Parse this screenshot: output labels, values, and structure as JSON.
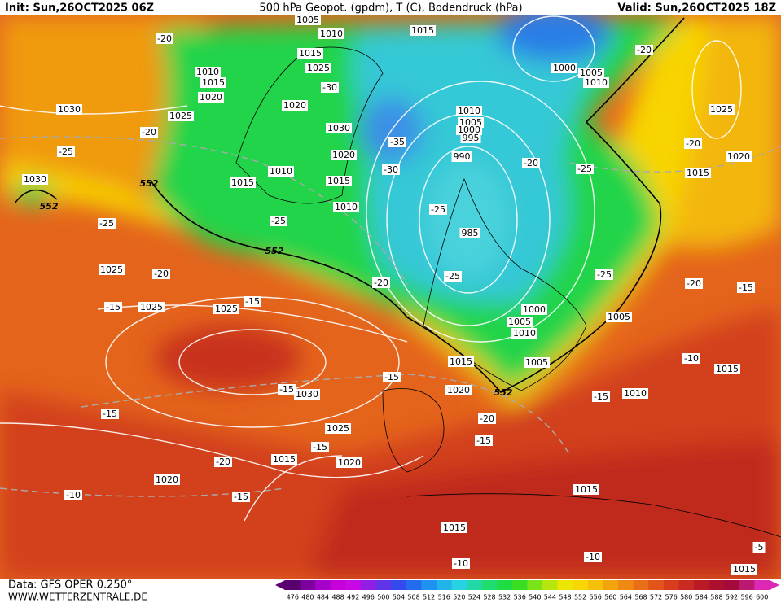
{
  "header": {
    "init": "Init: Sun,26OCT2025 06Z",
    "title": "500 hPa Geopot. (gpdm), T (C), Bodendruck (hPa)",
    "valid": "Valid: Sun,26OCT2025 18Z"
  },
  "footer": {
    "data": "Data: GFS OPER 0.250°",
    "site": "WWW.WETTERZENTRALE.DE"
  },
  "colorbar": {
    "labels": [
      476,
      480,
      484,
      488,
      492,
      496,
      500,
      504,
      508,
      512,
      516,
      520,
      524,
      528,
      532,
      536,
      540,
      544,
      548,
      552,
      556,
      560,
      564,
      568,
      572,
      576,
      580,
      584,
      588,
      592,
      596,
      600
    ]
  },
  "map": {
    "pressure_labels": [
      "1005",
      "1010",
      "1015",
      "1015",
      "1025",
      "1010",
      "1015",
      "1020",
      "1030",
      "1025",
      "1020",
      "1030",
      "1020",
      "1010",
      "1015",
      "1015",
      "1010",
      "1030",
      "1025",
      "1025",
      "1025",
      "1030",
      "1025",
      "1020",
      "1015",
      "1020",
      "1015",
      "1020",
      "1000",
      "1005",
      "1010",
      "1025",
      "1020",
      "1015",
      "1010",
      "1005",
      "1000",
      "995",
      "990",
      "985",
      "1000",
      "1005",
      "1010",
      "1005",
      "1005",
      "1010",
      "1015",
      "1015",
      "1015",
      "1015"
    ],
    "temperature_labels": [
      "-20",
      "-20",
      "-30",
      "-20",
      "-25",
      "-35",
      "-30",
      "-20",
      "-25",
      "-20",
      "-25",
      "-25",
      "-25",
      "-20",
      "-20",
      "-25",
      "-25",
      "-20",
      "-15",
      "-15",
      "-15",
      "-15",
      "-15",
      "-10",
      "-15",
      "-15",
      "-20",
      "-15",
      "-15",
      "-20",
      "-15",
      "-10",
      "-10",
      "-10",
      "-5"
    ],
    "geopotential_labels": [
      "552",
      "552",
      "552",
      "552"
    ]
  }
}
